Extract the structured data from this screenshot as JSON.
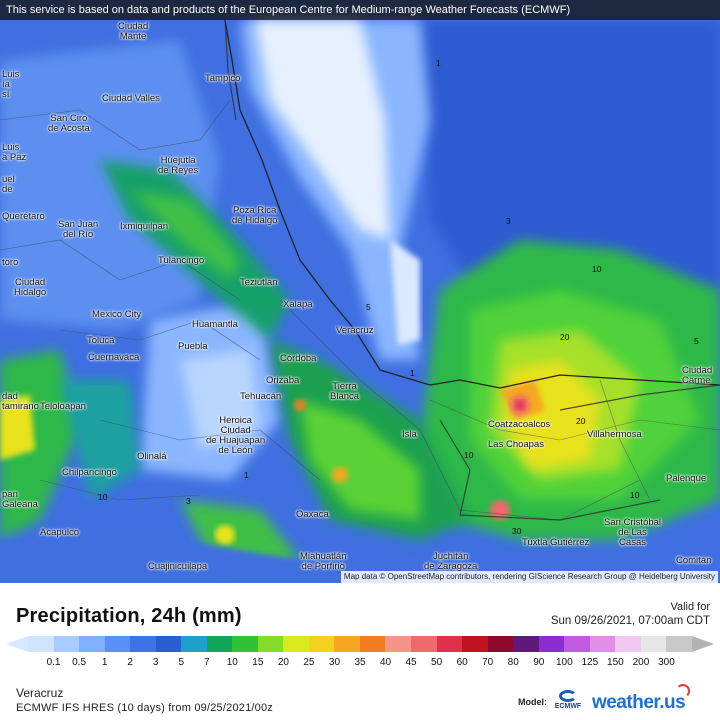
{
  "banner": "This service is based on data and products of the European Centre for Medium-range Weather Forecasts (ECMWF)",
  "attribution": "Map data © OpenStreetMap contributors, rendering GIScience Research Group @ Heidelberg University",
  "title": "Precipitation, 24h (mm)",
  "valid_label": "Valid for",
  "valid_time": "Sun 09/26/2021, 07:00am CDT",
  "region": "Veracruz",
  "model_line": "ECMWF IFS HRES (10 days) from 09/25/2021/00z",
  "model_label": "Model:",
  "ecmwf_label": "ECMWF",
  "brand": "weather.us",
  "legend": {
    "ticks": [
      "0.1",
      "0.5",
      "1",
      "2",
      "3",
      "5",
      "7",
      "10",
      "15",
      "20",
      "25",
      "30",
      "35",
      "40",
      "45",
      "50",
      "60",
      "70",
      "80",
      "90",
      "100",
      "125",
      "150",
      "200",
      "300"
    ],
    "colors": [
      "#cfe4ff",
      "#a9ccff",
      "#80b0ff",
      "#5a90f5",
      "#3c74e6",
      "#2a5dd0",
      "#1fa0c8",
      "#13a65a",
      "#2fc234",
      "#84dc26",
      "#d8ea1c",
      "#f2d21d",
      "#f5a623",
      "#f27c22",
      "#f4958a",
      "#ef6b6b",
      "#e0304a",
      "#c1121f",
      "#8e0a2c",
      "#5e1a7a",
      "#8a2ed1",
      "#c05ae0",
      "#e08fe8",
      "#f2c8f2",
      "#e6e6e6",
      "#c8c8c8"
    ]
  },
  "cities": [
    {
      "key": "ciudad-mante",
      "label": "Ciudad\nMante"
    },
    {
      "key": "tampico",
      "label": "Tampico"
    },
    {
      "key": "luis",
      "label": "Luis\nía\nsí"
    },
    {
      "key": "ciudad-valles",
      "label": "Ciudad Valles"
    },
    {
      "key": "san-ciro",
      "label": "San Ciro\nde Acosta"
    },
    {
      "key": "luis-la-paz",
      "label": "Luis\na Paz"
    },
    {
      "key": "huejutla",
      "label": "Huejutla\nde Reyes"
    },
    {
      "key": "uel",
      "label": "uel\nde"
    },
    {
      "key": "queretaro",
      "label": "Querétaro"
    },
    {
      "key": "san-juan-del-rio",
      "label": "San Juan\ndel Río"
    },
    {
      "key": "ixmiquilpan",
      "label": "Ixmiquilpan"
    },
    {
      "key": "poza-rica",
      "label": "Poza Rica\nde Hidalgo"
    },
    {
      "key": "tulancingo",
      "label": "Tulancingo"
    },
    {
      "key": "toro",
      "label": "toro"
    },
    {
      "key": "teziutlan",
      "label": "Teziutlán"
    },
    {
      "key": "ciudad-hidalgo",
      "label": "Ciudad\nHidalgo"
    },
    {
      "key": "xalapa",
      "label": "Xalapa"
    },
    {
      "key": "mexico-city",
      "label": "Mexico City"
    },
    {
      "key": "huamantla",
      "label": "Huamantla"
    },
    {
      "key": "veracruz",
      "label": "Veracruz"
    },
    {
      "key": "toluca",
      "label": "Toluca"
    },
    {
      "key": "puebla",
      "label": "Puebla"
    },
    {
      "key": "cuernavaca",
      "label": "Cuernavaca"
    },
    {
      "key": "cordoba",
      "label": "Córdoba"
    },
    {
      "key": "orizaba",
      "label": "Orizaba"
    },
    {
      "key": "tierra-blanca",
      "label": "Tierra\nBlanca"
    },
    {
      "key": "dad-altamirano",
      "label": "dad\ntamirano"
    },
    {
      "key": "teloloapan",
      "label": "Teloloapan"
    },
    {
      "key": "tehuacan",
      "label": "Tehuacán"
    },
    {
      "key": "heroica",
      "label": "Heroica\nCiudad\nde Huajuapan\nde León"
    },
    {
      "key": "isla",
      "label": "Isla"
    },
    {
      "key": "coatzacoalcos",
      "label": "Coatzacoalcos"
    },
    {
      "key": "las-choapas",
      "label": "Las Choapas"
    },
    {
      "key": "villahermosa",
      "label": "Villahermosa"
    },
    {
      "key": "ciudad-del-carmen",
      "label": "Ciudad\nCarme"
    },
    {
      "key": "olinala",
      "label": "Olinalá"
    },
    {
      "key": "chilpancingo",
      "label": "Chilpancingo"
    },
    {
      "key": "palenque",
      "label": "Palenque"
    },
    {
      "key": "pan-galeana",
      "label": "pan\nGaleana"
    },
    {
      "key": "oaxaca",
      "label": "Oaxaca"
    },
    {
      "key": "san-cristobal",
      "label": "San Cristóbal\nde Las\nCasas"
    },
    {
      "key": "acapulco",
      "label": "Acapulco"
    },
    {
      "key": "tuxtla",
      "label": "Tuxtla Gutiérrez"
    },
    {
      "key": "comitan",
      "label": "Comitán"
    },
    {
      "key": "miahuatlan",
      "label": "Miahuatlán\nde Porfirio"
    },
    {
      "key": "juchitan",
      "label": "Juchitán\nde Zaragoza"
    },
    {
      "key": "cuajinicuilapa",
      "label": "Cuajinicuilapa"
    }
  ],
  "contour_labels": [
    "1",
    "3",
    "10",
    "20",
    "10",
    "20",
    "5",
    "10",
    "30",
    "10",
    "3",
    "1",
    "1",
    "5"
  ]
}
